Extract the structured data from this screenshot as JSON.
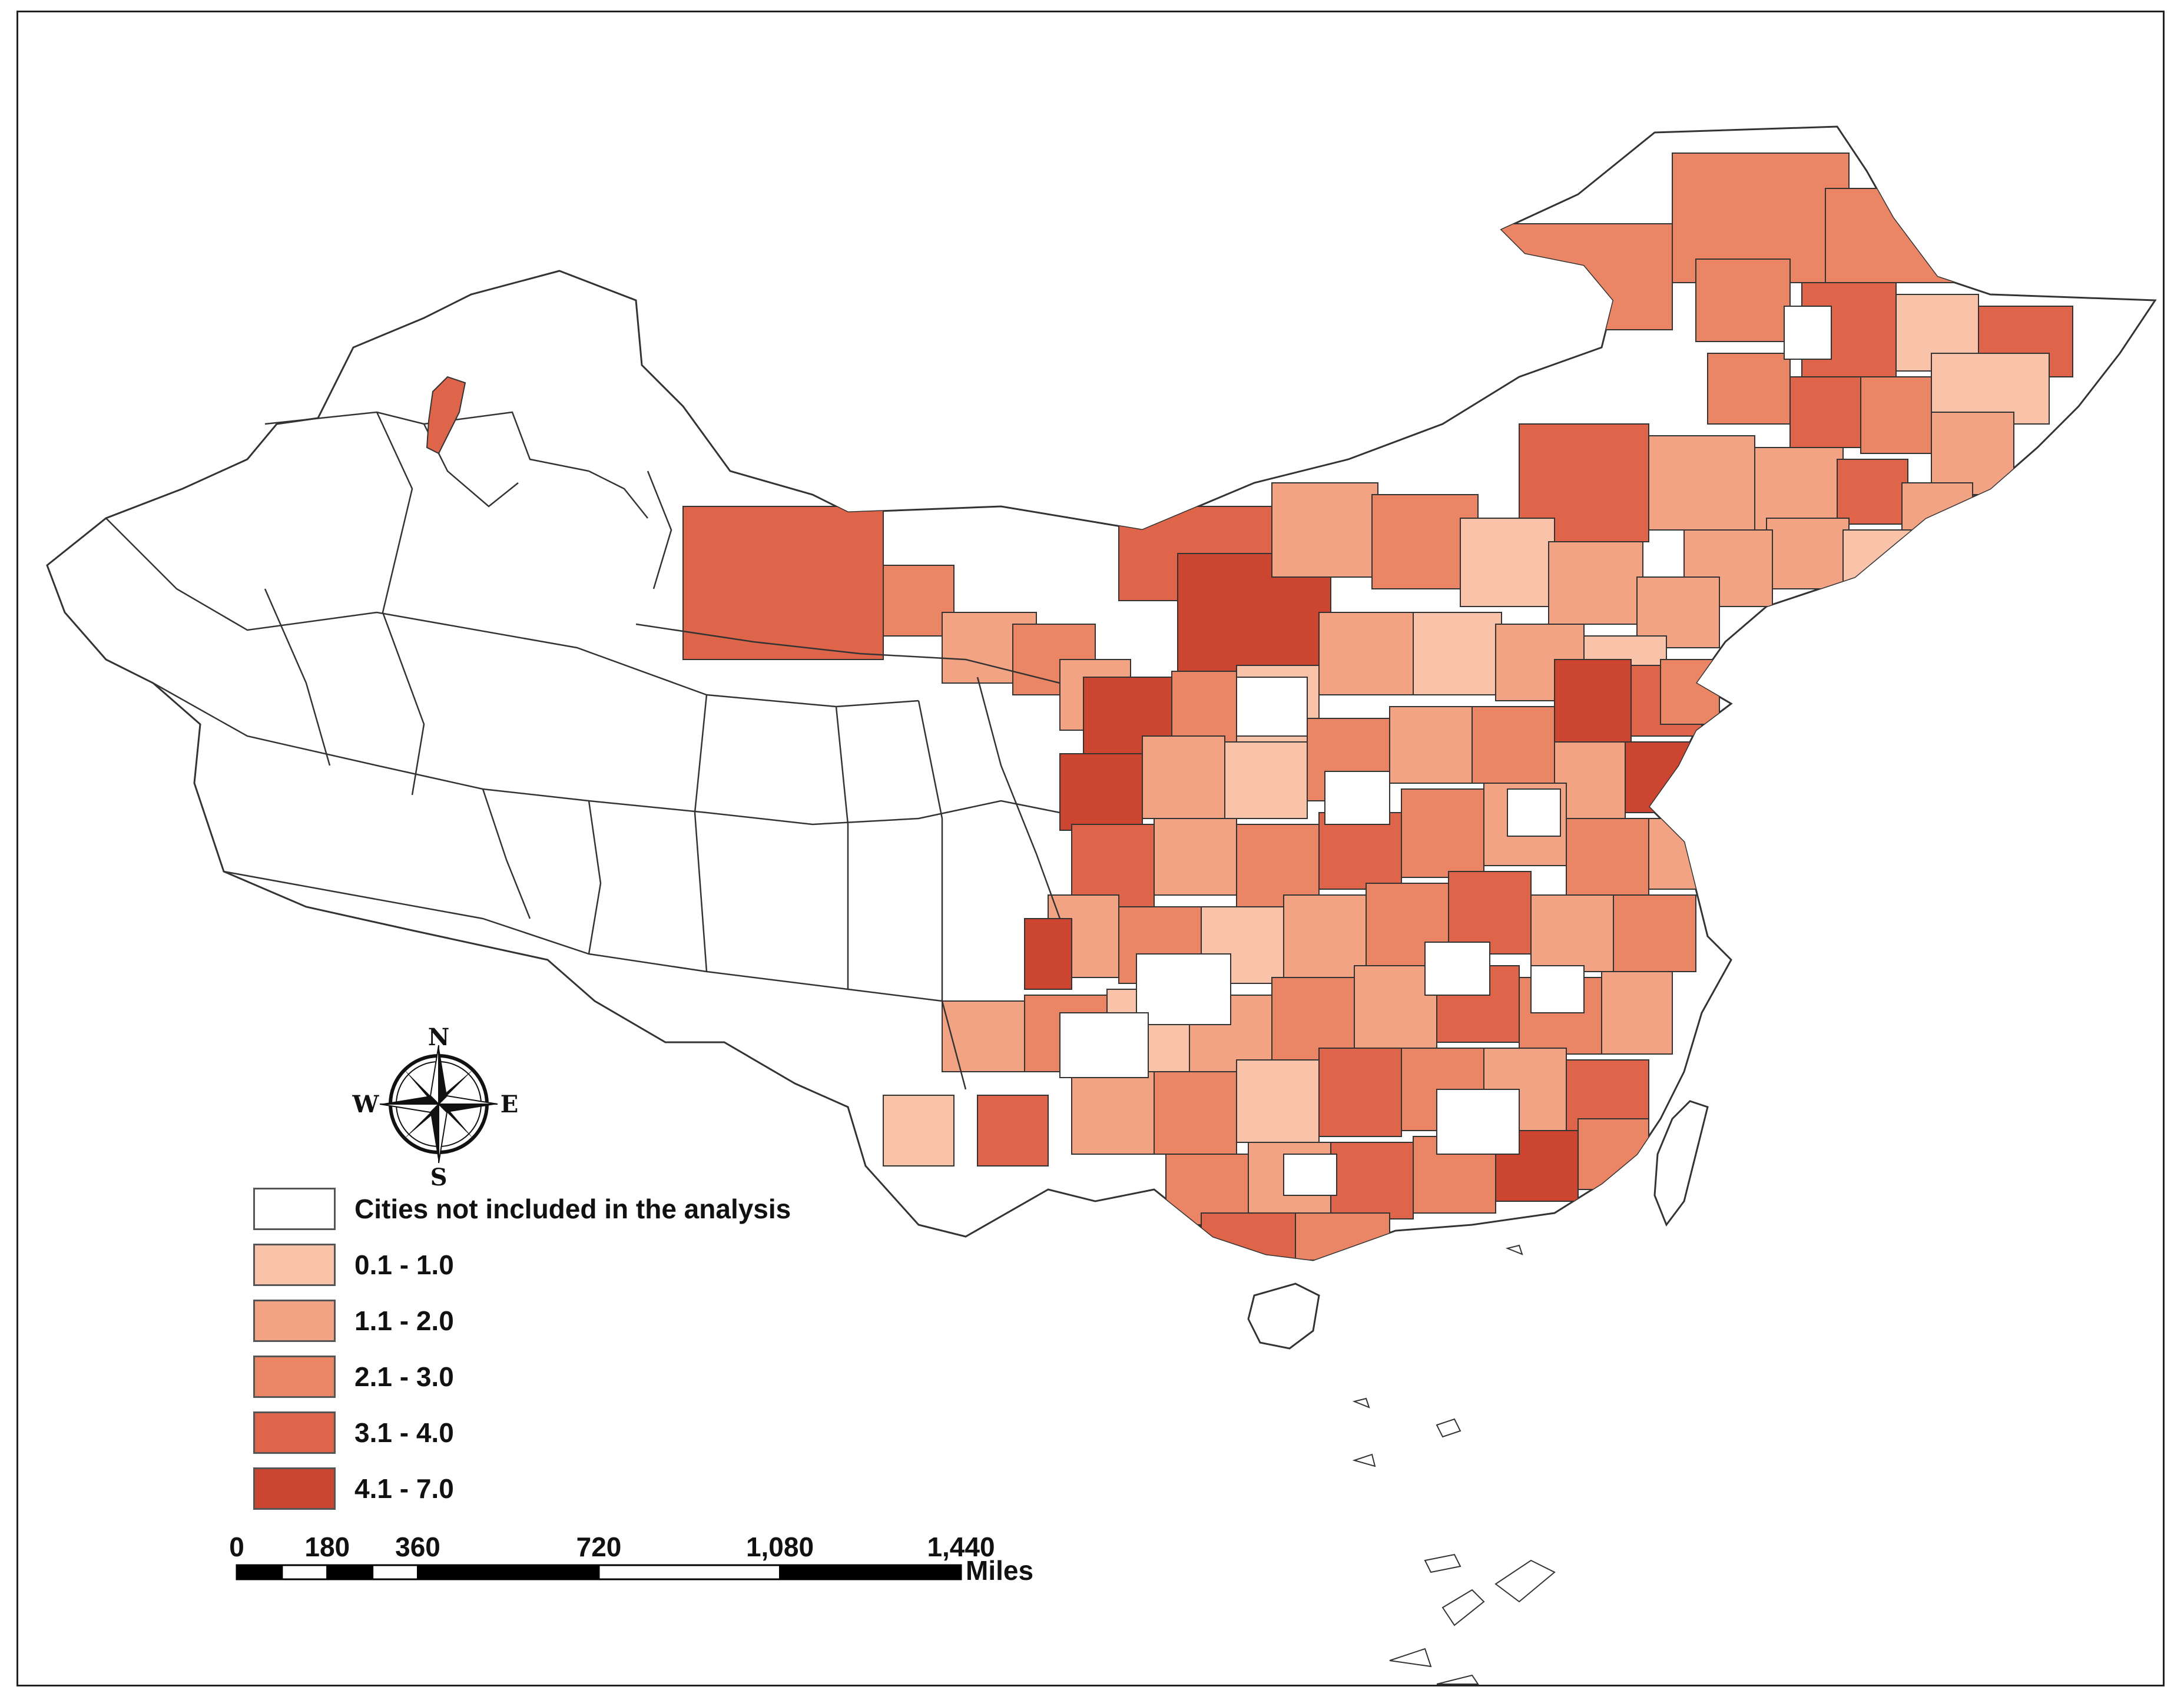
{
  "colors": {
    "none": "#ffffff",
    "c1": "#f8c3a8",
    "c2": "#f2a384",
    "c3": "#ea8565",
    "c4": "#de654a",
    "c5": "#cc4531",
    "outline": "#333333"
  },
  "legend": {
    "items": [
      {
        "label": "Cities not included in the analysis",
        "color_key": "none"
      },
      {
        "label": "0.1 - 1.0",
        "color_key": "c1"
      },
      {
        "label": "1.1 - 2.0",
        "color_key": "c2"
      },
      {
        "label": "2.1 - 3.0",
        "color_key": "c3"
      },
      {
        "label": "3.1 - 4.0",
        "color_key": "c4"
      },
      {
        "label": "4.1 - 7.0",
        "color_key": "c5"
      }
    ]
  },
  "compass": {
    "n": "N",
    "s": "S",
    "e": "E",
    "w": "W",
    "icon": "compass-rose-icon"
  },
  "scale_bar": {
    "ticks": [
      {
        "value": 0,
        "label": "0"
      },
      {
        "value": 180,
        "label": "180"
      },
      {
        "value": 360,
        "label": "360"
      },
      {
        "value": 720,
        "label": "720"
      },
      {
        "value": 1080,
        "label": "1,080"
      },
      {
        "value": 1440,
        "label": "1,440"
      }
    ],
    "unit": "Miles",
    "max": 1440
  }
}
